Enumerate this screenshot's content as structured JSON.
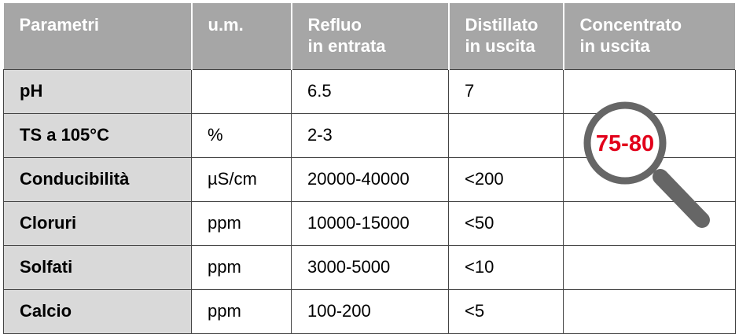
{
  "table": {
    "header": [
      [
        "Parametri"
      ],
      [
        "u.m."
      ],
      [
        "Refluo",
        "in entrata"
      ],
      [
        "Distillato",
        "in uscita"
      ],
      [
        "Concentrato",
        "in uscita"
      ]
    ],
    "rows": [
      [
        "pH",
        null,
        "6.5",
        "7",
        null
      ],
      [
        "TS a 105°C",
        "%",
        "2-3",
        null,
        null
      ],
      [
        "Conducibilità",
        "µS/cm",
        "20000-40000",
        "<200",
        null
      ],
      [
        "Cloruri",
        "ppm",
        "10000-15000",
        "<50",
        null
      ],
      [
        "Solfati",
        "ppm",
        "3000-5000",
        "<10",
        null
      ],
      [
        "Calcio",
        "ppm",
        "100-200",
        "<5",
        null
      ]
    ]
  },
  "magnifier_label": "75-80"
}
